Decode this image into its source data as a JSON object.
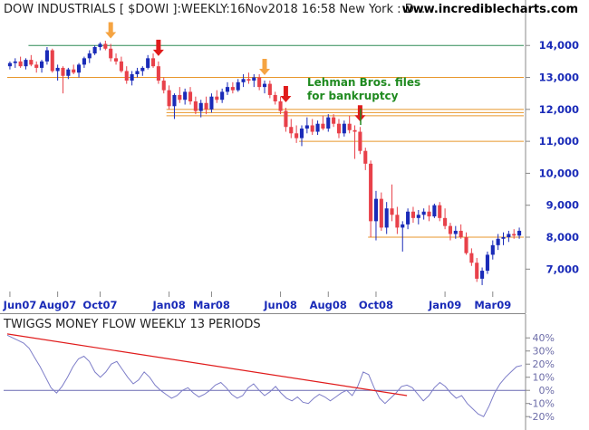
{
  "chart_data": [
    {
      "type": "candlestick",
      "title": "DOW INDUSTRIALS [ $DOWI ]:WEEKLY:16Nov2018 16:58 New York : D...",
      "watermark": "www.incrediblecharts.com",
      "y_ticks": [
        "14,000",
        "13,000",
        "12,000",
        "11,000",
        "10,000",
        "9,000",
        "8,000",
        "7,000"
      ],
      "y_tick_values": [
        14000,
        13000,
        12000,
        11000,
        10000,
        9000,
        8000,
        7000
      ],
      "ylim": [
        6300,
        14800
      ],
      "x_ticks": [
        "Jun07",
        "Aug07",
        "Oct07",
        "Jan08",
        "Mar08",
        "Jun08",
        "Aug08",
        "Oct08",
        "Jan09",
        "Mar09"
      ],
      "x_tick_index": [
        0,
        9,
        17,
        30,
        38,
        51,
        60,
        69,
        82,
        91
      ],
      "horizontal_lines": [
        {
          "value": 14000,
          "color": "#2e8b57",
          "from_index": 4
        },
        {
          "value": 13000,
          "color": "#e8962b",
          "from_index": 0
        },
        {
          "value": 12000,
          "color": "#e8962b",
          "from_index": 30
        },
        {
          "value": 11900,
          "color": "#e8962b",
          "from_index": 30
        },
        {
          "value": 11800,
          "color": "#e8962b",
          "from_index": 30
        },
        {
          "value": 11000,
          "color": "#e8962b",
          "from_index": 55
        },
        {
          "value": 8000,
          "color": "#e8962b",
          "from_index": 68
        }
      ],
      "annotation": "Lehman Bros. files for bankruptcy",
      "annotation_lines": [
        "Lehman Bros. files",
        "for bankruptcy"
      ],
      "arrows": [
        {
          "index": 19,
          "color": "#f5a442",
          "direction": "down"
        },
        {
          "index": 28,
          "color": "#e01b1b",
          "direction": "down"
        },
        {
          "index": 48,
          "color": "#f5a442",
          "direction": "down"
        },
        {
          "index": 52,
          "color": "#e01b1b",
          "direction": "down"
        },
        {
          "index": 66,
          "color": "#e01b1b",
          "direction": "down"
        }
      ],
      "up_color": "#1a2bb8",
      "down_color": "#e8414a",
      "candles": [
        {
          "o": 13350,
          "h": 13500,
          "l": 13250,
          "c": 13450
        },
        {
          "o": 13450,
          "h": 13600,
          "l": 13300,
          "c": 13500
        },
        {
          "o": 13500,
          "h": 13650,
          "l": 13300,
          "c": 13350
        },
        {
          "o": 13350,
          "h": 13600,
          "l": 13250,
          "c": 13550
        },
        {
          "o": 13550,
          "h": 13700,
          "l": 13350,
          "c": 13400
        },
        {
          "o": 13400,
          "h": 13500,
          "l": 13150,
          "c": 13300
        },
        {
          "o": 13300,
          "h": 13550,
          "l": 13150,
          "c": 13500
        },
        {
          "o": 13500,
          "h": 13950,
          "l": 13400,
          "c": 13850
        },
        {
          "o": 13850,
          "h": 13900,
          "l": 13150,
          "c": 13200
        },
        {
          "o": 13200,
          "h": 13400,
          "l": 12900,
          "c": 13300
        },
        {
          "o": 13300,
          "h": 13350,
          "l": 12500,
          "c": 13050
        },
        {
          "o": 13050,
          "h": 13300,
          "l": 12950,
          "c": 13250
        },
        {
          "o": 13250,
          "h": 13400,
          "l": 13100,
          "c": 13150
        },
        {
          "o": 13150,
          "h": 13450,
          "l": 13000,
          "c": 13400
        },
        {
          "o": 13400,
          "h": 13650,
          "l": 13300,
          "c": 13600
        },
        {
          "o": 13600,
          "h": 13850,
          "l": 13450,
          "c": 13750
        },
        {
          "o": 13750,
          "h": 14000,
          "l": 13700,
          "c": 13950
        },
        {
          "o": 13950,
          "h": 14100,
          "l": 13850,
          "c": 14050
        },
        {
          "o": 14050,
          "h": 14150,
          "l": 13850,
          "c": 13900
        },
        {
          "o": 13900,
          "h": 14050,
          "l": 13500,
          "c": 13600
        },
        {
          "o": 13600,
          "h": 13750,
          "l": 13400,
          "c": 13500
        },
        {
          "o": 13500,
          "h": 13650,
          "l": 13150,
          "c": 13200
        },
        {
          "o": 13200,
          "h": 13350,
          "l": 12800,
          "c": 12900
        },
        {
          "o": 12900,
          "h": 13200,
          "l": 12750,
          "c": 13100
        },
        {
          "o": 13100,
          "h": 13300,
          "l": 13000,
          "c": 13200
        },
        {
          "o": 13200,
          "h": 13350,
          "l": 13050,
          "c": 13300
        },
        {
          "o": 13300,
          "h": 13700,
          "l": 13250,
          "c": 13600
        },
        {
          "o": 13600,
          "h": 13750,
          "l": 13300,
          "c": 13350
        },
        {
          "o": 13350,
          "h": 13500,
          "l": 12800,
          "c": 12900
        },
        {
          "o": 12900,
          "h": 13000,
          "l": 12500,
          "c": 12600
        },
        {
          "o": 12600,
          "h": 12750,
          "l": 12000,
          "c": 12100
        },
        {
          "o": 12100,
          "h": 12500,
          "l": 11700,
          "c": 12450
        },
        {
          "o": 12450,
          "h": 12700,
          "l": 12200,
          "c": 12300
        },
        {
          "o": 12300,
          "h": 12650,
          "l": 12150,
          "c": 12550
        },
        {
          "o": 12550,
          "h": 12700,
          "l": 12150,
          "c": 12250
        },
        {
          "o": 12250,
          "h": 12400,
          "l": 11850,
          "c": 11950
        },
        {
          "o": 11950,
          "h": 12300,
          "l": 11750,
          "c": 12200
        },
        {
          "o": 12200,
          "h": 12400,
          "l": 11850,
          "c": 12000
        },
        {
          "o": 12000,
          "h": 12500,
          "l": 11900,
          "c": 12400
        },
        {
          "o": 12400,
          "h": 12600,
          "l": 12200,
          "c": 12300
        },
        {
          "o": 12300,
          "h": 12650,
          "l": 12200,
          "c": 12550
        },
        {
          "o": 12550,
          "h": 12850,
          "l": 12450,
          "c": 12700
        },
        {
          "o": 12700,
          "h": 12850,
          "l": 12500,
          "c": 12600
        },
        {
          "o": 12600,
          "h": 12950,
          "l": 12550,
          "c": 12850
        },
        {
          "o": 12850,
          "h": 13100,
          "l": 12700,
          "c": 12950
        },
        {
          "o": 12950,
          "h": 13150,
          "l": 12800,
          "c": 12900
        },
        {
          "o": 12900,
          "h": 13100,
          "l": 12700,
          "c": 13000
        },
        {
          "o": 13000,
          "h": 13100,
          "l": 12600,
          "c": 12700
        },
        {
          "o": 12700,
          "h": 12900,
          "l": 12500,
          "c": 12800
        },
        {
          "o": 12800,
          "h": 12900,
          "l": 12350,
          "c": 12450
        },
        {
          "o": 12450,
          "h": 12550,
          "l": 12150,
          "c": 12250
        },
        {
          "o": 12250,
          "h": 12400,
          "l": 11850,
          "c": 11950
        },
        {
          "o": 11950,
          "h": 12050,
          "l": 11300,
          "c": 11450
        },
        {
          "o": 11450,
          "h": 11700,
          "l": 11100,
          "c": 11250
        },
        {
          "o": 11250,
          "h": 11500,
          "l": 10950,
          "c": 11100
        },
        {
          "o": 11100,
          "h": 11500,
          "l": 10850,
          "c": 11400
        },
        {
          "o": 11400,
          "h": 11750,
          "l": 11250,
          "c": 11500
        },
        {
          "o": 11500,
          "h": 11700,
          "l": 11200,
          "c": 11300
        },
        {
          "o": 11300,
          "h": 11650,
          "l": 11200,
          "c": 11550
        },
        {
          "o": 11550,
          "h": 11800,
          "l": 11350,
          "c": 11400
        },
        {
          "o": 11400,
          "h": 11850,
          "l": 11300,
          "c": 11750
        },
        {
          "o": 11750,
          "h": 11850,
          "l": 11450,
          "c": 11550
        },
        {
          "o": 11550,
          "h": 11700,
          "l": 11100,
          "c": 11250
        },
        {
          "o": 11250,
          "h": 11650,
          "l": 11150,
          "c": 11550
        },
        {
          "o": 11550,
          "h": 11800,
          "l": 11250,
          "c": 11350
        },
        {
          "o": 11350,
          "h": 11500,
          "l": 10450,
          "c": 11300
        },
        {
          "o": 11300,
          "h": 11450,
          "l": 10600,
          "c": 10700
        },
        {
          "o": 10700,
          "h": 10800,
          "l": 10100,
          "c": 10300
        },
        {
          "o": 10300,
          "h": 10400,
          "l": 8000,
          "c": 8500
        },
        {
          "o": 8500,
          "h": 9450,
          "l": 7900,
          "c": 9200
        },
        {
          "o": 9200,
          "h": 9400,
          "l": 8200,
          "c": 8300
        },
        {
          "o": 8300,
          "h": 9100,
          "l": 8100,
          "c": 8900
        },
        {
          "o": 8900,
          "h": 9650,
          "l": 8500,
          "c": 8700
        },
        {
          "o": 8700,
          "h": 8950,
          "l": 8100,
          "c": 8300
        },
        {
          "o": 8300,
          "h": 8500,
          "l": 7550,
          "c": 8400
        },
        {
          "o": 8400,
          "h": 8900,
          "l": 8250,
          "c": 8800
        },
        {
          "o": 8800,
          "h": 8950,
          "l": 8450,
          "c": 8600
        },
        {
          "o": 8600,
          "h": 8850,
          "l": 8400,
          "c": 8700
        },
        {
          "o": 8700,
          "h": 8900,
          "l": 8550,
          "c": 8800
        },
        {
          "o": 8800,
          "h": 9000,
          "l": 8500,
          "c": 8650
        },
        {
          "o": 8650,
          "h": 9050,
          "l": 8600,
          "c": 9000
        },
        {
          "o": 9000,
          "h": 9100,
          "l": 8500,
          "c": 8600
        },
        {
          "o": 8600,
          "h": 8900,
          "l": 8250,
          "c": 8350
        },
        {
          "o": 8350,
          "h": 8450,
          "l": 7900,
          "c": 8100
        },
        {
          "o": 8100,
          "h": 8350,
          "l": 7950,
          "c": 8200
        },
        {
          "o": 8200,
          "h": 8400,
          "l": 7950,
          "c": 8000
        },
        {
          "o": 8000,
          "h": 8150,
          "l": 7450,
          "c": 7500
        },
        {
          "o": 7500,
          "h": 7650,
          "l": 7100,
          "c": 7200
        },
        {
          "o": 7200,
          "h": 7350,
          "l": 6600,
          "c": 6700
        },
        {
          "o": 6700,
          "h": 7050,
          "l": 6500,
          "c": 6950
        },
        {
          "o": 6950,
          "h": 7550,
          "l": 6850,
          "c": 7450
        },
        {
          "o": 7450,
          "h": 7900,
          "l": 7300,
          "c": 7750
        },
        {
          "o": 7750,
          "h": 8100,
          "l": 7600,
          "c": 7950
        },
        {
          "o": 7950,
          "h": 8150,
          "l": 7750,
          "c": 8000
        },
        {
          "o": 8000,
          "h": 8200,
          "l": 7850,
          "c": 8100
        },
        {
          "o": 8100,
          "h": 8250,
          "l": 7950,
          "c": 8050
        },
        {
          "o": 8050,
          "h": 8300,
          "l": 7950,
          "c": 8200
        }
      ]
    },
    {
      "type": "line",
      "title": "TWIGGS MONEY FLOW WEEKLY 13 PERIODS",
      "y_ticks": [
        "40%",
        "30%",
        "20%",
        "10%",
        "0%",
        "-10%",
        "-20%"
      ],
      "y_tick_values": [
        40,
        30,
        20,
        10,
        0,
        -10,
        -20
      ],
      "ylim": [
        -24,
        45
      ],
      "zero_line": 0,
      "trendline": {
        "from": [
          0,
          43
        ],
        "to": [
          73,
          -4
        ],
        "color": "#e01b1b"
      },
      "line_color": "#7d7dc8",
      "values": [
        42,
        40,
        38,
        36,
        32,
        25,
        18,
        10,
        2,
        -2,
        3,
        10,
        18,
        24,
        26,
        22,
        14,
        10,
        14,
        20,
        22,
        16,
        10,
        5,
        8,
        14,
        10,
        4,
        0,
        -3,
        -6,
        -4,
        0,
        2,
        -2,
        -5,
        -3,
        0,
        4,
        6,
        2,
        -3,
        -6,
        -4,
        2,
        5,
        0,
        -4,
        -1,
        3,
        -2,
        -6,
        -8,
        -5,
        -9,
        -10,
        -6,
        -3,
        -5,
        -8,
        -5,
        -2,
        0,
        -4,
        3,
        14,
        12,
        2,
        -6,
        -10,
        -6,
        -2,
        3,
        4,
        2,
        -3,
        -8,
        -4,
        2,
        6,
        3,
        -2,
        -6,
        -4,
        -10,
        -14,
        -18,
        -20,
        -12,
        -2,
        5,
        10,
        14,
        18,
        19
      ]
    }
  ]
}
